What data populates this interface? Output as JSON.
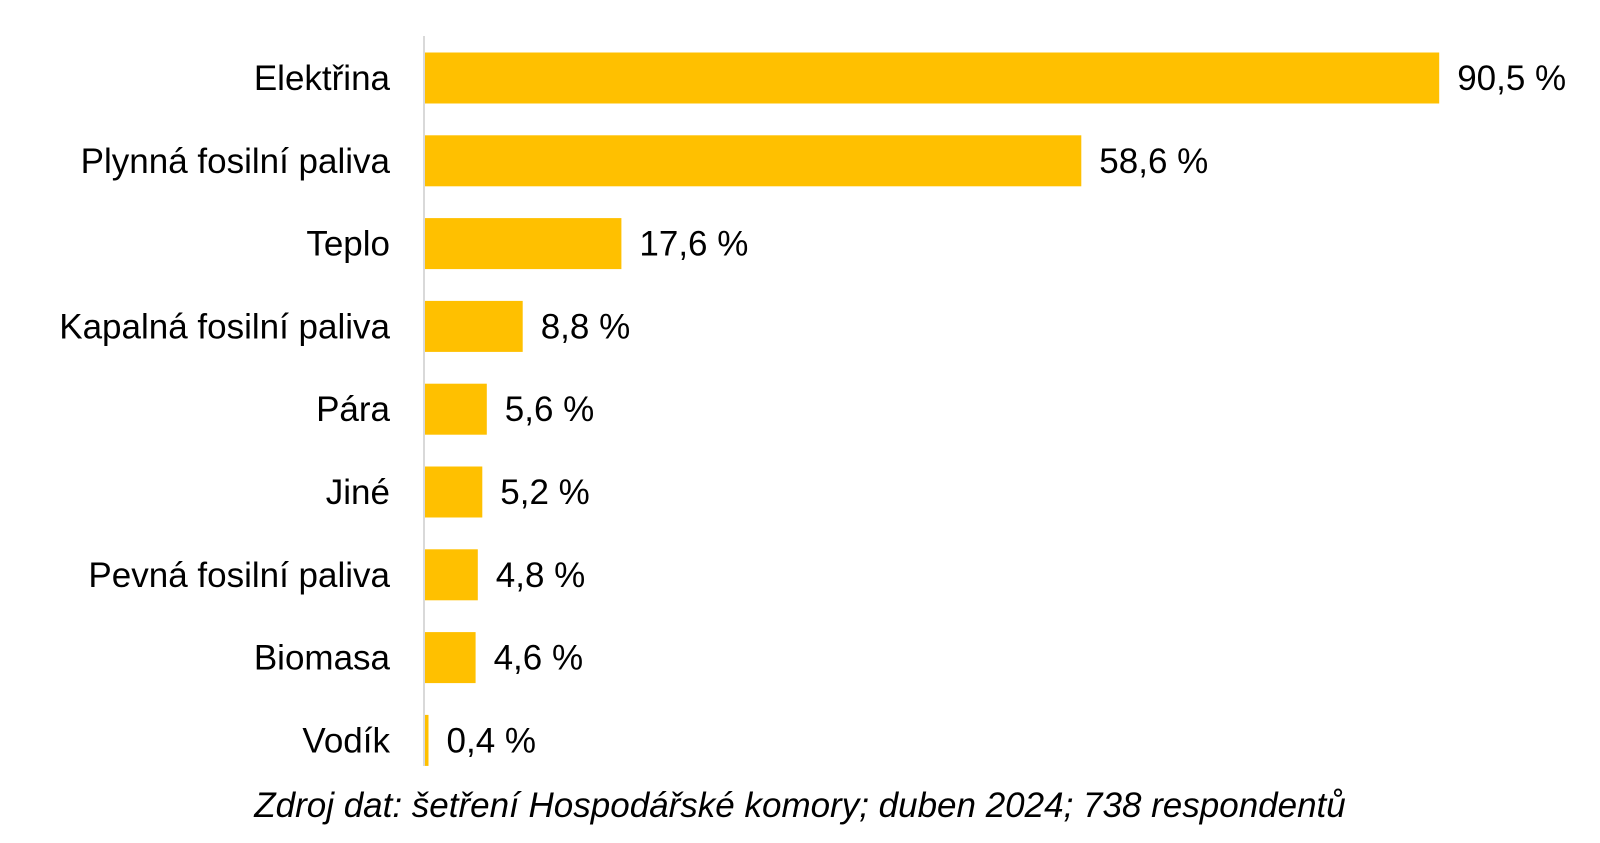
{
  "chart_data": {
    "type": "bar",
    "orientation": "horizontal",
    "categories": [
      "Elektřina",
      "Plynná fosilní paliva",
      "Teplo",
      "Kapalná fosilní paliva",
      "Pára",
      "Jiné",
      "Pevná fosilní paliva",
      "Biomasa",
      "Vodík"
    ],
    "values": [
      90.5,
      58.6,
      17.6,
      8.8,
      5.6,
      5.2,
      4.8,
      4.6,
      0.4
    ],
    "value_labels": [
      "90,5 %",
      "58,6 %",
      "17,6 %",
      "8,8 %",
      "5,6 %",
      "5,2 %",
      "4,8 %",
      "4,6 %",
      "0,4 %"
    ],
    "unit": "%",
    "xlim": [
      0,
      100
    ],
    "grid": false,
    "legend": "none",
    "bar_color": "#FFC000",
    "axis_color": "#D9D9D9"
  },
  "source_note": "Zdroj dat: šetření Hospodářské komory; duben 2024; 738 respondentů"
}
